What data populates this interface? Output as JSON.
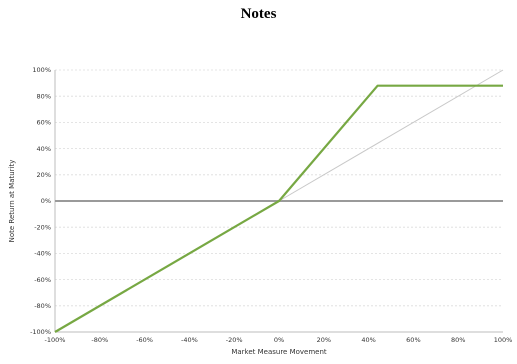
{
  "page": {
    "title": "Notes"
  },
  "chart_data": {
    "type": "line",
    "title": "",
    "xlabel": "Market Measure Movement",
    "ylabel": "Note Return at Maturity",
    "xlim": [
      -100,
      100
    ],
    "ylim": [
      -100,
      100
    ],
    "x_ticks": [
      -100,
      -80,
      -60,
      -40,
      -20,
      0,
      20,
      40,
      60,
      80,
      100
    ],
    "y_ticks": [
      -100,
      -80,
      -60,
      -40,
      -20,
      0,
      20,
      40,
      60,
      80,
      100
    ],
    "x_tick_labels": [
      "-100%",
      "-80%",
      "-60%",
      "-40%",
      "-20%",
      "0%",
      "20%",
      "40%",
      "60%",
      "80%",
      "100%"
    ],
    "y_tick_labels": [
      "-100%",
      "-80%",
      "-60%",
      "-40%",
      "-20%",
      "0%",
      "20%",
      "40%",
      "60%",
      "80%",
      "100%"
    ],
    "grid": true,
    "legend": "none",
    "series": [
      {
        "color": "#77a843",
        "points": [
          [
            -100,
            -100
          ],
          [
            0,
            0
          ],
          [
            44,
            88
          ],
          [
            100,
            88
          ]
        ]
      },
      {
        "color": "#c8c8c8",
        "points": [
          [
            0,
            0
          ],
          [
            100,
            100
          ]
        ]
      }
    ],
    "zero_line_color": "#9a9a9a",
    "grid_color": "#dcdcdc"
  }
}
